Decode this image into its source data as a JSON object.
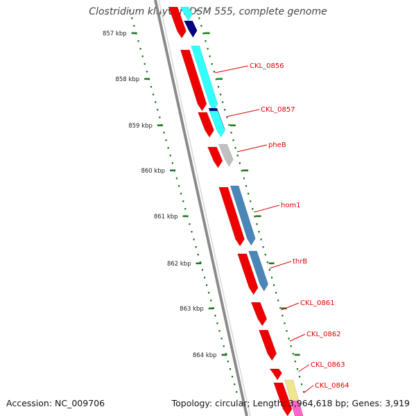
{
  "title": "Clostridium kluyveri DSM 555, complete genome",
  "footer": {
    "accession": "Accession: NC_009706",
    "summary": "Topology: circular; Length: 3,964,618 bp; Genes: 3,919"
  },
  "colors": {
    "backbone": "#8a8a8a",
    "ruler_ticks": "#1e7a1e",
    "cds": "#ee0000",
    "label": "#dd0000",
    "cyan": "#33ffff",
    "navy": "#000080",
    "gray": "#c0c0c0",
    "steelblue": "#4a86b8",
    "khaki": "#f0e68c",
    "pink": "#ff66cc"
  },
  "ruler": [
    {
      "label": "857 kbp"
    },
    {
      "label": "858 kbp"
    },
    {
      "label": "859 kbp"
    },
    {
      "label": "860 kbp"
    },
    {
      "label": "861 kbp"
    },
    {
      "label": "862 kbp"
    },
    {
      "label": "863 kbp"
    },
    {
      "label": "864 kbp"
    }
  ],
  "gene_labels": [
    {
      "name": "CKL_0856"
    },
    {
      "name": "CKL_0857"
    },
    {
      "name": "pheB"
    },
    {
      "name": "hom1"
    },
    {
      "name": "thrB"
    },
    {
      "name": "CKL_0861"
    },
    {
      "name": "CKL_0862"
    },
    {
      "name": "CKL_0863"
    },
    {
      "name": "CKL_0864"
    }
  ]
}
